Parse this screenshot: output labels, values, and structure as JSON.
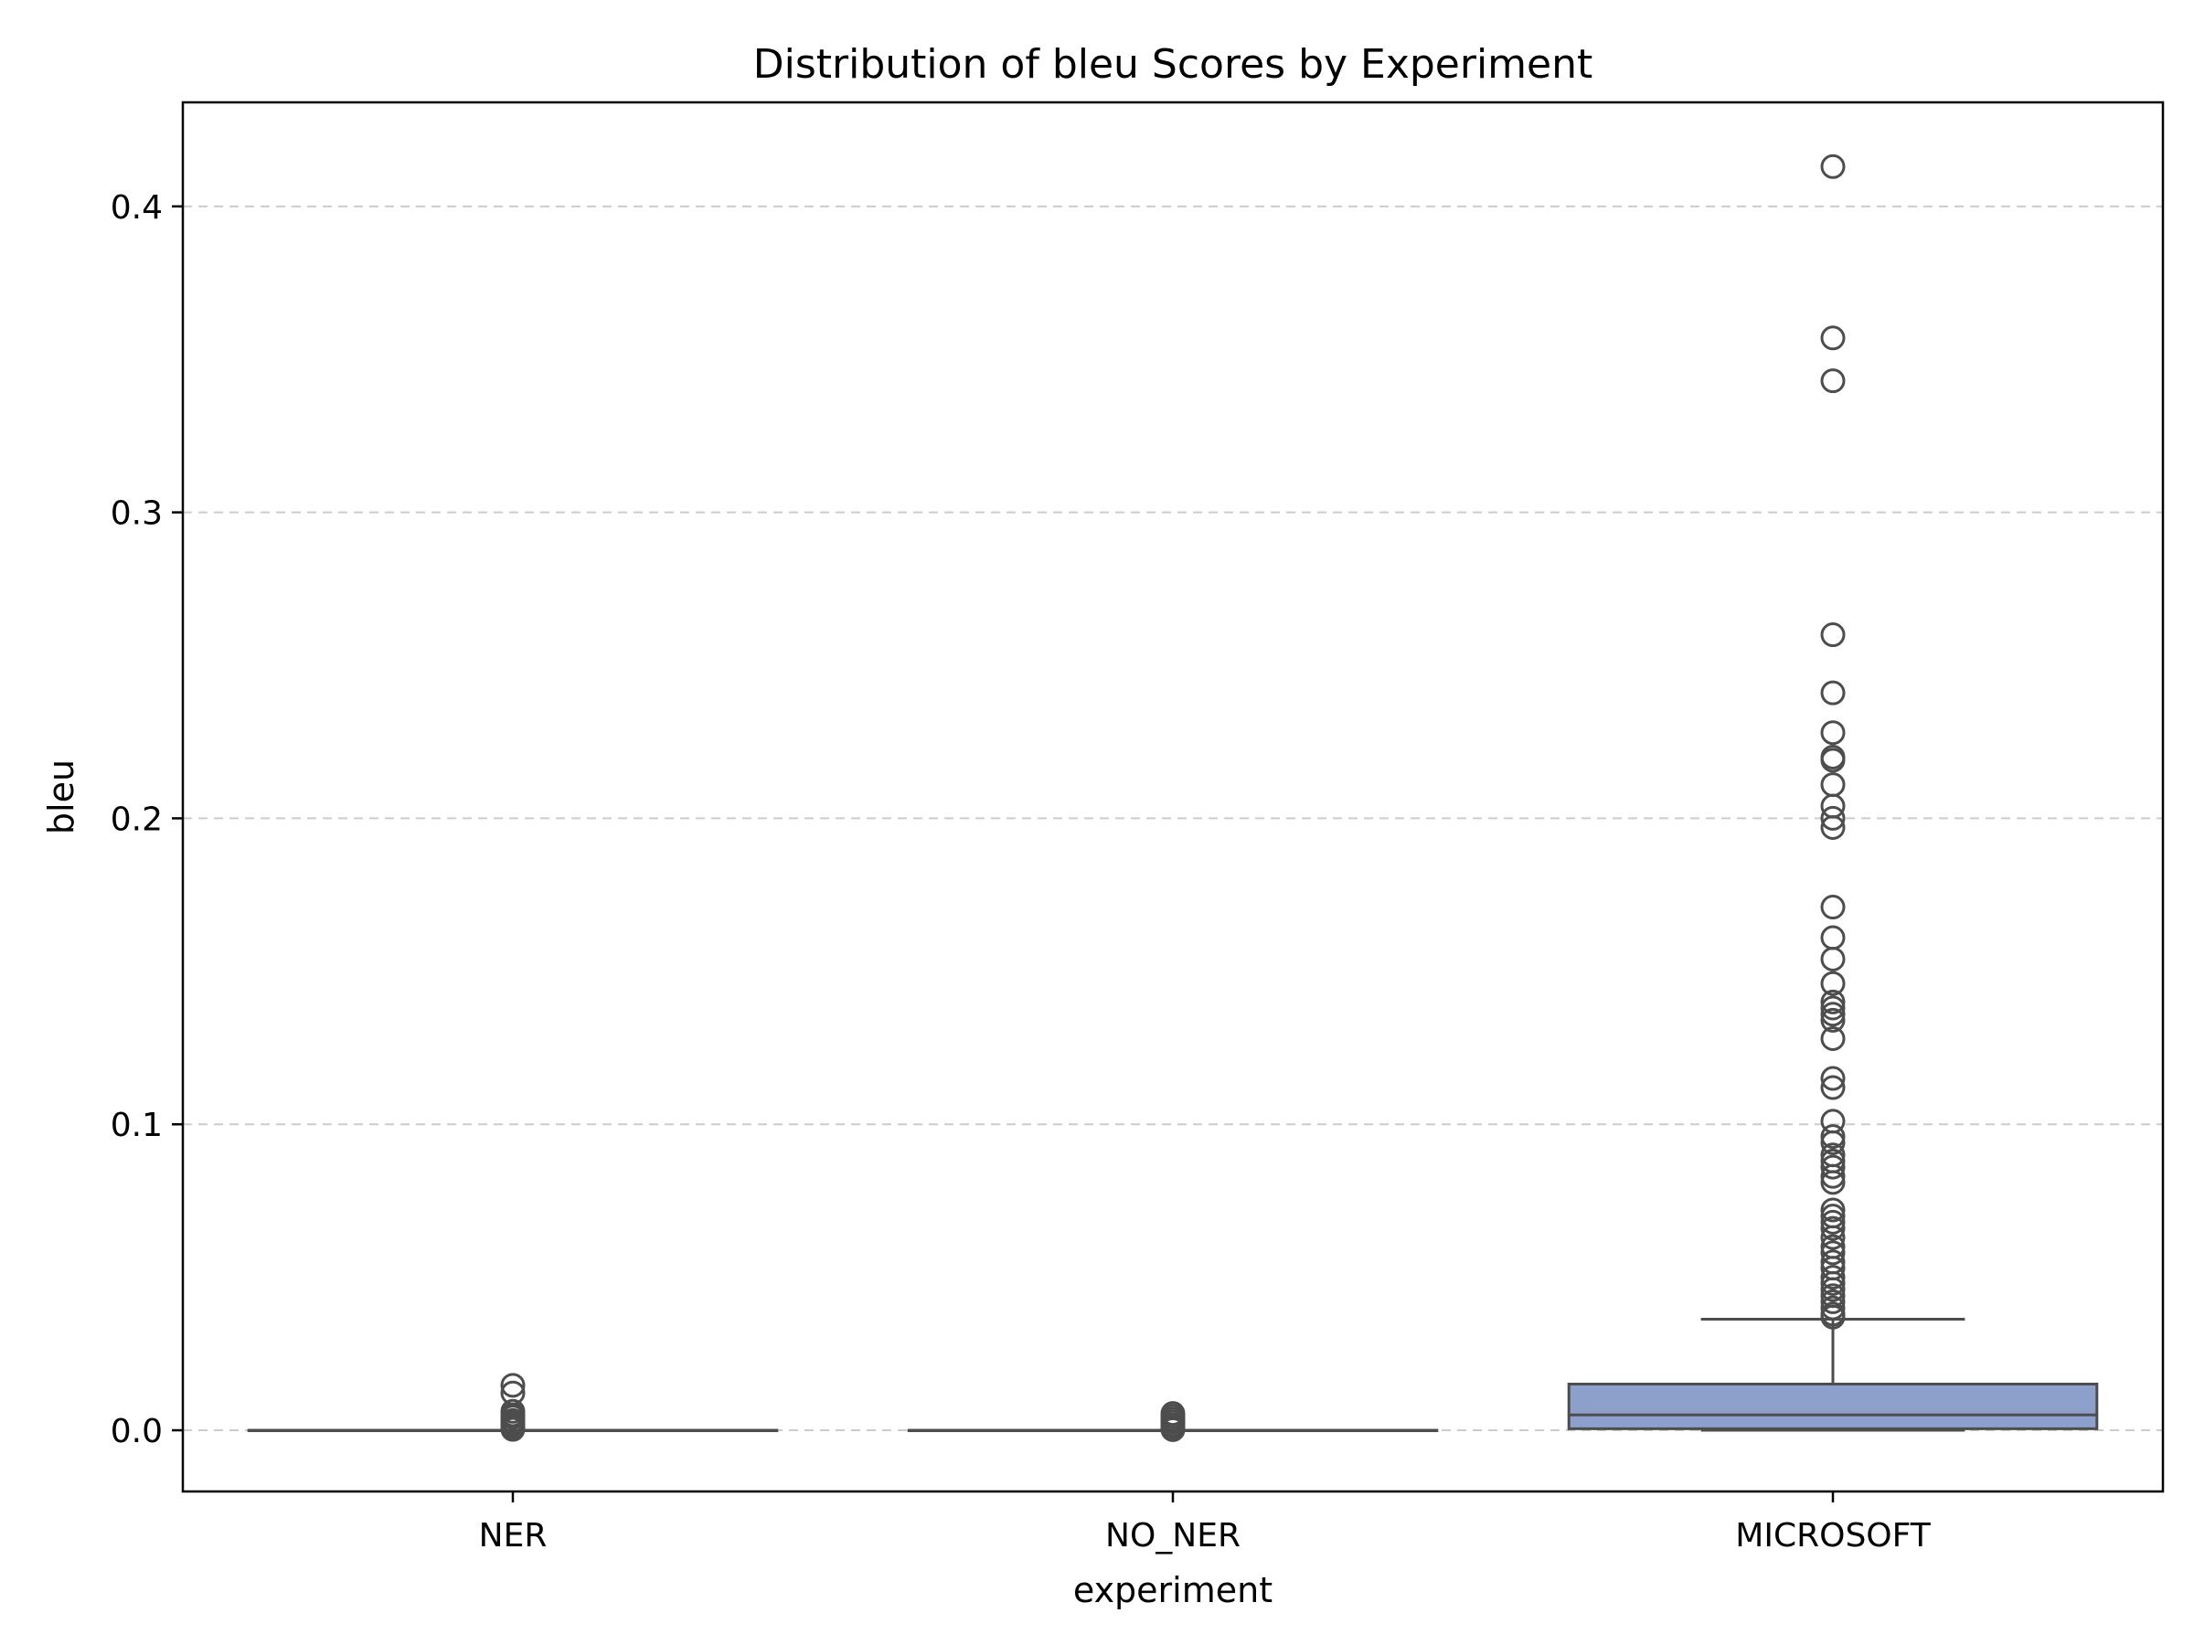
{
  "chart_data": {
    "type": "box",
    "title": "Distribution of bleu Scores by Experiment",
    "xlabel": "experiment",
    "ylabel": "bleu",
    "categories": [
      "NER",
      "NO_NER",
      "MICROSOFT"
    ],
    "ylim": [
      -0.02,
      0.434
    ],
    "yticks": [
      0.0,
      0.1,
      0.2,
      0.3,
      0.4
    ],
    "ytick_labels": [
      "0.0",
      "0.1",
      "0.2",
      "0.3",
      "0.4"
    ],
    "grid": "horizontal-dashed",
    "box_color": "#8da0cb",
    "series": [
      {
        "category": "NER",
        "q1": 0.0,
        "median": 0.0,
        "q3": 0.0,
        "whisker_low": 0.0,
        "whisker_high": 0.0,
        "outliers": [
          0.0147,
          0.0122,
          0.0062,
          0.0051,
          0.0043,
          0.0032,
          0.0024,
          0.0016,
          0.0008,
          0.0003
        ]
      },
      {
        "category": "NO_NER",
        "q1": 0.0,
        "median": 0.0,
        "q3": 0.0,
        "whisker_low": 0.0,
        "whisker_high": 0.0,
        "outliers": [
          0.0055,
          0.0046,
          0.0037,
          0.0028,
          0.0019,
          0.0011,
          0.0005,
          0.0002
        ]
      },
      {
        "category": "MICROSOFT",
        "q1": 0.0005,
        "median": 0.005,
        "q3": 0.0151,
        "whisker_low": 0.0,
        "whisker_high": 0.0363,
        "outliers": [
          0.413,
          0.357,
          0.343,
          0.26,
          0.241,
          0.228,
          0.22,
          0.219,
          0.211,
          0.204,
          0.2,
          0.197,
          0.171,
          0.161,
          0.154,
          0.146,
          0.14,
          0.138,
          0.136,
          0.134,
          0.128,
          0.115,
          0.112,
          0.101,
          0.096,
          0.094,
          0.09,
          0.088,
          0.086,
          0.083,
          0.081,
          0.072,
          0.07,
          0.068,
          0.066,
          0.063,
          0.06,
          0.058,
          0.055,
          0.053,
          0.05,
          0.048,
          0.046,
          0.044,
          0.042,
          0.04,
          0.038,
          0.037
        ]
      }
    ]
  }
}
